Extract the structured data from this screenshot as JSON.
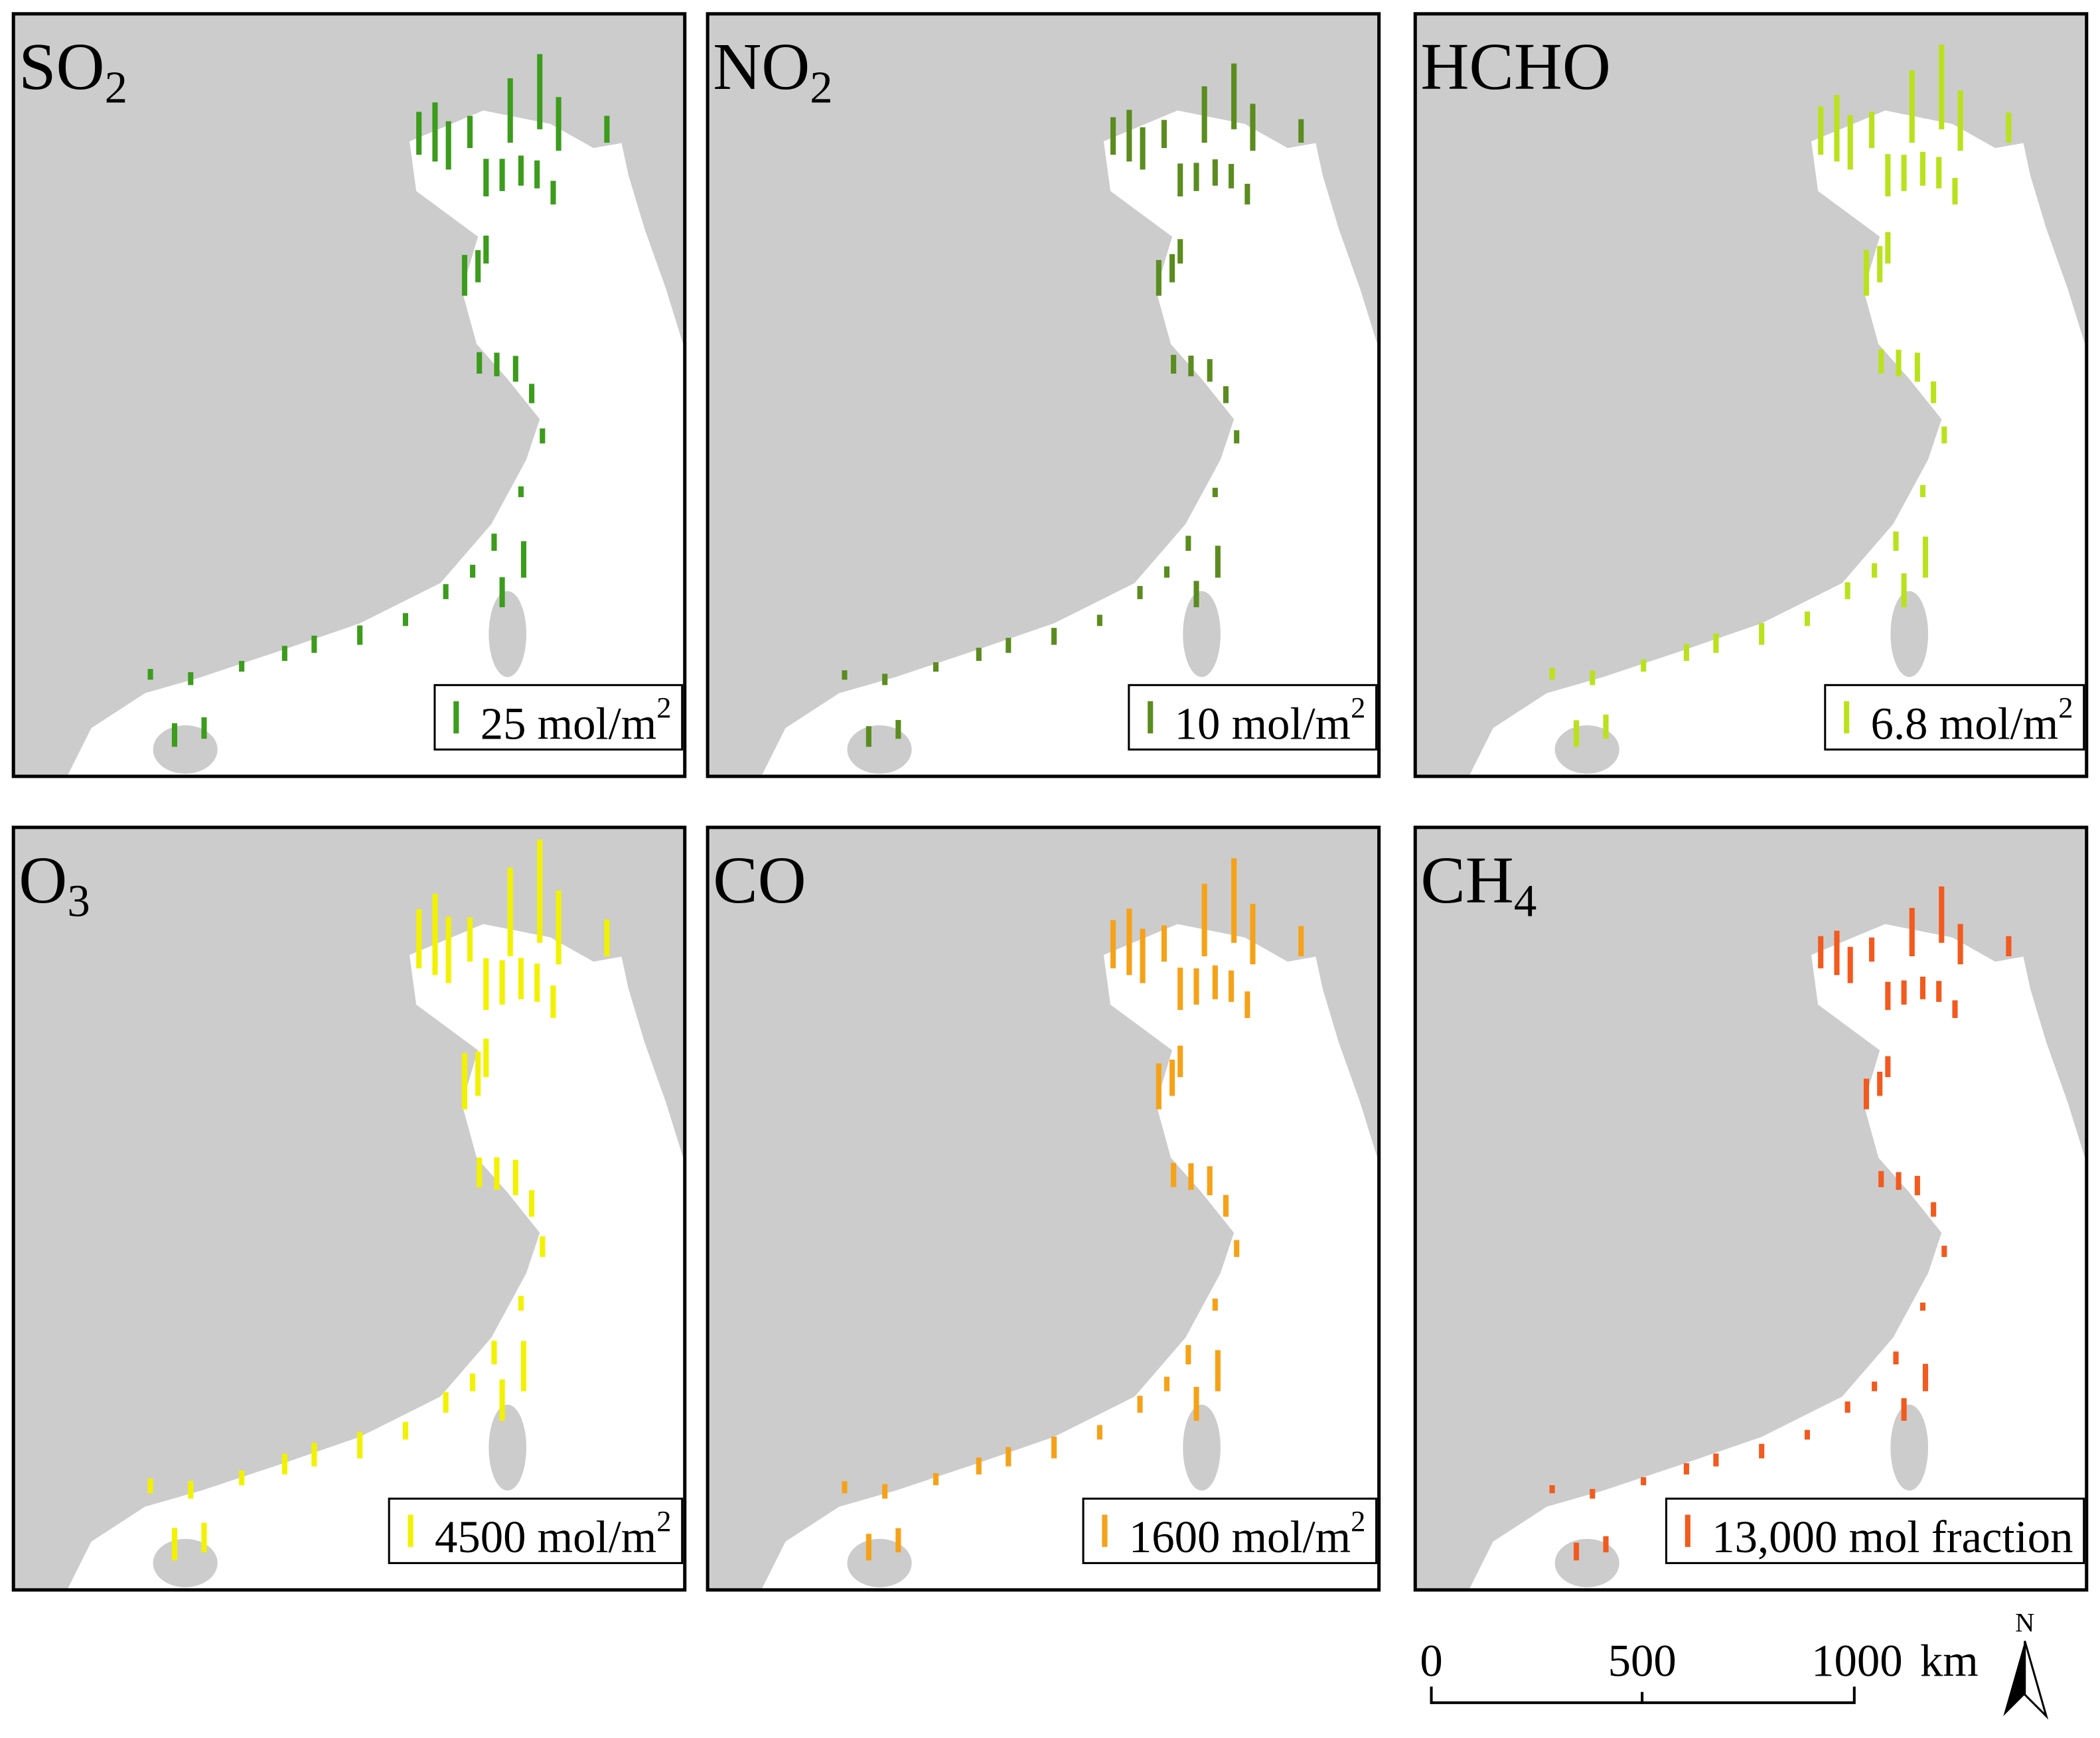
{
  "panels": [
    {
      "title": "SO",
      "title_sub": "2",
      "legend": "25 mol/m",
      "legend_sup": "2",
      "color": "#3c9c1c"
    },
    {
      "title": "NO",
      "title_sub": "2",
      "legend": "10 mol/m",
      "legend_sup": "2",
      "color": "#5b8c1f"
    },
    {
      "title": "HCHO",
      "legend": "6.8 mol/m",
      "legend_sup": "2",
      "color": "#b9e21c"
    },
    {
      "title": "O",
      "title_sub": "3",
      "legend": "4500 mol/m",
      "legend_sup": "2",
      "color": "#f2f200"
    },
    {
      "title": "CO",
      "legend": "1600 mol/m",
      "legend_sup": "2",
      "color": "#f5a218"
    },
    {
      "title": "CH",
      "title_sub": "4",
      "legend": "13,000 mol fraction",
      "color": "#f25a1e"
    }
  ],
  "scale_bar": {
    "ticks": [
      "0",
      "500",
      "1000"
    ],
    "unit": "km",
    "north": "N"
  }
}
